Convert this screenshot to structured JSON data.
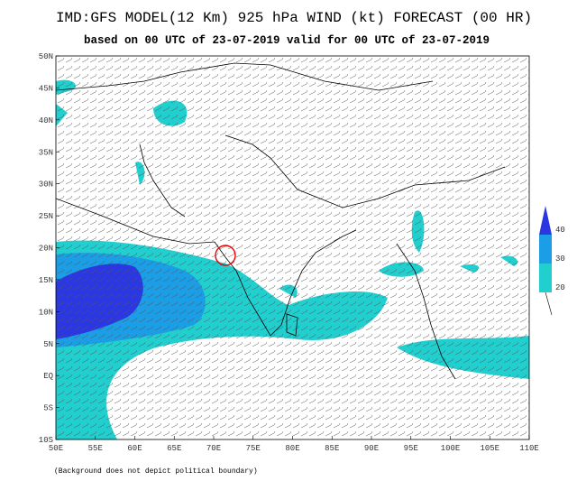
{
  "header": {
    "title": "IMD:GFS MODEL(12 Km) 925 hPa WIND (kt) FORECAST (00 HR)",
    "subtitle": "based on 00 UTC of 23-07-2019 valid for 00 UTC of 23-07-2019"
  },
  "map": {
    "lat_labels": [
      "50N",
      "45N",
      "40N",
      "35N",
      "30N",
      "25N",
      "20N",
      "15N",
      "10N",
      "5N",
      "EQ",
      "5S",
      "10S"
    ],
    "lon_labels": [
      "50E",
      "55E",
      "60E",
      "65E",
      "70E",
      "75E",
      "80E",
      "85E",
      "90E",
      "95E",
      "100E",
      "105E",
      "110E"
    ],
    "footnote": "(Background does not depict political boundary)"
  },
  "legend": {
    "items": [
      {
        "label": "40",
        "color": "#2b37e0"
      },
      {
        "label": "30",
        "color": "#1b9ee6"
      },
      {
        "label": "20",
        "color": "#22cfcf"
      }
    ]
  }
}
